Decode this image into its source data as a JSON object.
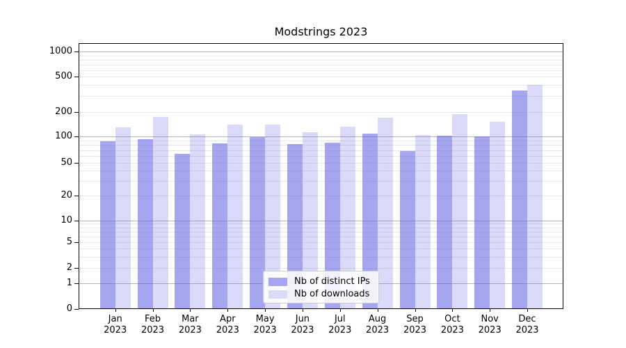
{
  "figure": {
    "title": "Modstrings 2023"
  },
  "legend": {
    "items": [
      {
        "label": "Nb of distinct IPs",
        "swatch_color": "#a6a6f0"
      },
      {
        "label": "Nb of downloads",
        "swatch_color": "#dbdbf8"
      }
    ]
  },
  "axes": {
    "y_tick_labels": [
      "0",
      "1",
      "2",
      "5",
      "10",
      "20",
      "50",
      "100",
      "200",
      "500",
      "1000"
    ]
  },
  "chart_data": {
    "type": "bar",
    "title": "Modstrings 2023",
    "categories": [
      "Jan 2023",
      "Feb 2023",
      "Mar 2023",
      "Apr 2023",
      "May 2023",
      "Jun 2023",
      "Jul 2023",
      "Aug 2023",
      "Sep 2023",
      "Oct 2023",
      "Nov 2023",
      "Dec 2023"
    ],
    "series": [
      {
        "name": "Nb of distinct IPs",
        "color": "rgba(102,102,230,0.58)",
        "values": [
          89,
          93,
          64,
          84,
          98,
          82,
          85,
          108,
          68,
          102,
          100,
          350
        ]
      },
      {
        "name": "Nb of downloads",
        "color": "rgba(102,102,230,0.235)",
        "values": [
          130,
          175,
          107,
          140,
          140,
          113,
          133,
          170,
          104,
          190,
          152,
          400
        ]
      }
    ],
    "xlabel": "",
    "ylabel": "",
    "yscale": "symlog",
    "yticks": [
      0,
      1,
      2,
      5,
      10,
      20,
      50,
      100,
      200,
      500,
      1000
    ],
    "ylim": [
      0,
      1250
    ],
    "grid": true,
    "grid_which": "both",
    "legend_position": "lower center",
    "colors": {
      "bar_distinct_ips": "#a6a6f0",
      "bar_downloads": "#dbdbf8",
      "grid_major": "#b3b3b3",
      "grid_minor": "#e7e7e7"
    }
  }
}
